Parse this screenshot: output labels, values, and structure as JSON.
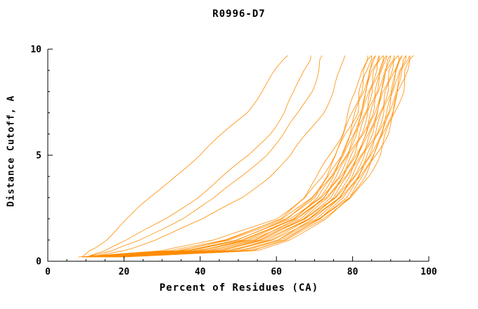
{
  "chart_data": {
    "type": "line",
    "title": "R0996-D7",
    "xlabel": "Percent of Residues (CA)",
    "ylabel": "Distance Cutoff, A",
    "xlim": [
      0,
      100
    ],
    "ylim": [
      0,
      10
    ],
    "x_major_ticks": [
      0,
      20,
      40,
      60,
      80,
      100
    ],
    "x_minor_step": 5,
    "y_major_ticks": [
      0,
      5,
      10
    ],
    "y_minor_step": 1,
    "grid": false,
    "legend": "none",
    "line_color": "#ff8c00",
    "axis_color": "#000000",
    "series_y": [
      0.2,
      0.5,
      1,
      2,
      3,
      4,
      5,
      6,
      7,
      8,
      9,
      9.7
    ],
    "series": [
      [
        9,
        11,
        15,
        21,
        27,
        33,
        40,
        46,
        52,
        56,
        60,
        63
      ],
      [
        10,
        15,
        21,
        31,
        39,
        46,
        53,
        58,
        62,
        65,
        67,
        69
      ],
      [
        10,
        17,
        24,
        35,
        44,
        51,
        57,
        62,
        66,
        69,
        71,
        72
      ],
      [
        11,
        20,
        28,
        41,
        51,
        58,
        64,
        68,
        72,
        75,
        77,
        78
      ],
      [
        8,
        30,
        44,
        60,
        67,
        71,
        74,
        77,
        79,
        81,
        82,
        84
      ],
      [
        9,
        32,
        46,
        61,
        68,
        72,
        75,
        78,
        80,
        82,
        83,
        85
      ],
      [
        9,
        34,
        47,
        62,
        69,
        73,
        76,
        78,
        81,
        82,
        84,
        85
      ],
      [
        10,
        35,
        48,
        62,
        70,
        74,
        77,
        79,
        81,
        83,
        84,
        86
      ],
      [
        10,
        36,
        49,
        63,
        70,
        74,
        77,
        80,
        82,
        83,
        85,
        86
      ],
      [
        11,
        37,
        50,
        64,
        71,
        75,
        78,
        80,
        82,
        84,
        85,
        87
      ],
      [
        11,
        38,
        51,
        64,
        71,
        75,
        78,
        81,
        83,
        84,
        86,
        87
      ],
      [
        12,
        39,
        52,
        65,
        72,
        76,
        79,
        81,
        83,
        85,
        86,
        88
      ],
      [
        12,
        40,
        52,
        65,
        72,
        76,
        79,
        82,
        84,
        85,
        87,
        88
      ],
      [
        13,
        41,
        53,
        66,
        73,
        77,
        80,
        82,
        84,
        86,
        87,
        89
      ],
      [
        13,
        42,
        54,
        66,
        73,
        77,
        80,
        83,
        85,
        86,
        88,
        89
      ],
      [
        14,
        43,
        55,
        67,
        74,
        78,
        81,
        83,
        85,
        87,
        88,
        90
      ],
      [
        14,
        44,
        55,
        67,
        74,
        78,
        81,
        84,
        86,
        87,
        89,
        90
      ],
      [
        15,
        45,
        56,
        68,
        75,
        79,
        82,
        84,
        86,
        88,
        89,
        91
      ],
      [
        15,
        46,
        57,
        68,
        75,
        79,
        82,
        85,
        87,
        88,
        90,
        91
      ],
      [
        16,
        47,
        58,
        69,
        76,
        80,
        83,
        85,
        87,
        89,
        90,
        92
      ],
      [
        16,
        48,
        58,
        69,
        76,
        80,
        83,
        86,
        88,
        89,
        91,
        92
      ],
      [
        17,
        49,
        59,
        70,
        77,
        81,
        84,
        86,
        88,
        90,
        91,
        93
      ],
      [
        17,
        50,
        60,
        70,
        77,
        81,
        84,
        87,
        89,
        90,
        92,
        93
      ],
      [
        18,
        51,
        61,
        71,
        78,
        82,
        85,
        87,
        89,
        91,
        92,
        94
      ],
      [
        18,
        52,
        61,
        71,
        78,
        82,
        85,
        88,
        90,
        91,
        93,
        94
      ],
      [
        19,
        53,
        62,
        72,
        79,
        83,
        86,
        88,
        90,
        92,
        93,
        95
      ],
      [
        19,
        54,
        63,
        72,
        79,
        83,
        86,
        89,
        91,
        92,
        94,
        95
      ],
      [
        20,
        55,
        63,
        73,
        80,
        84,
        87,
        89,
        91,
        93,
        94,
        96
      ]
    ]
  }
}
